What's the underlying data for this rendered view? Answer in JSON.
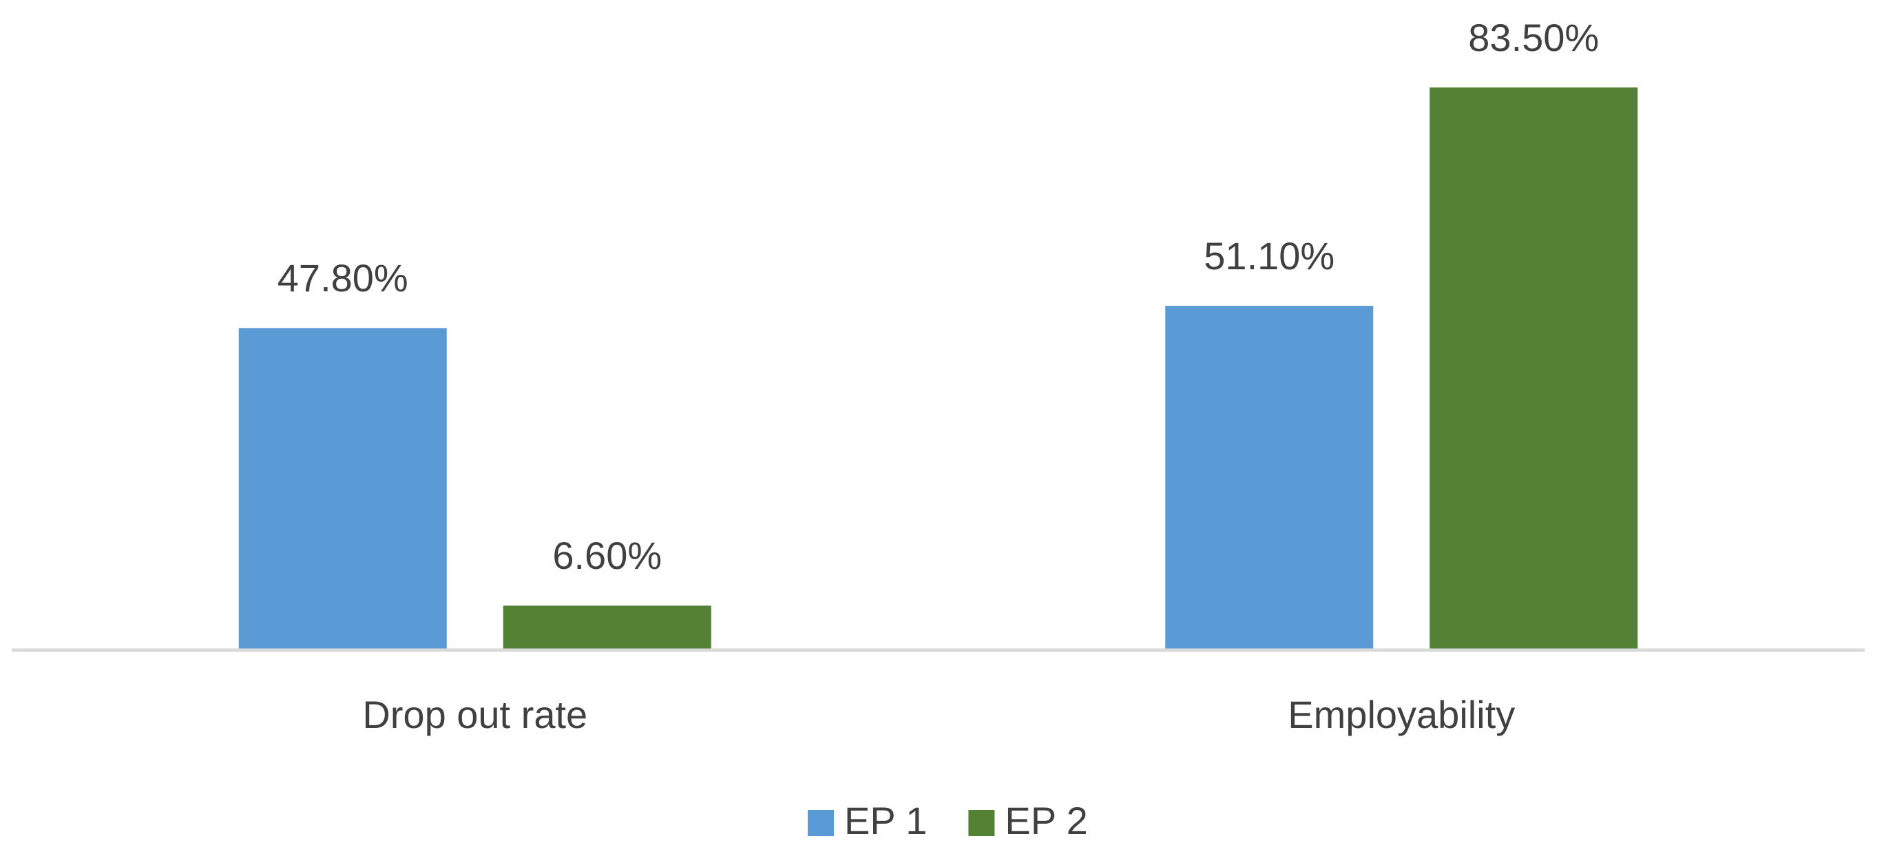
{
  "chart_data": {
    "type": "bar",
    "categories": [
      "Drop out rate",
      "Employability"
    ],
    "series": [
      {
        "name": "EP 1",
        "color": "#5b9bd5",
        "values": [
          47.8,
          51.1
        ],
        "value_labels": [
          "47.80%",
          "51.10%"
        ]
      },
      {
        "name": "EP 2",
        "color": "#548235",
        "values": [
          6.6,
          83.5
        ],
        "value_labels": [
          "6.60%",
          "83.50%"
        ]
      }
    ],
    "legend": "bottom"
  }
}
